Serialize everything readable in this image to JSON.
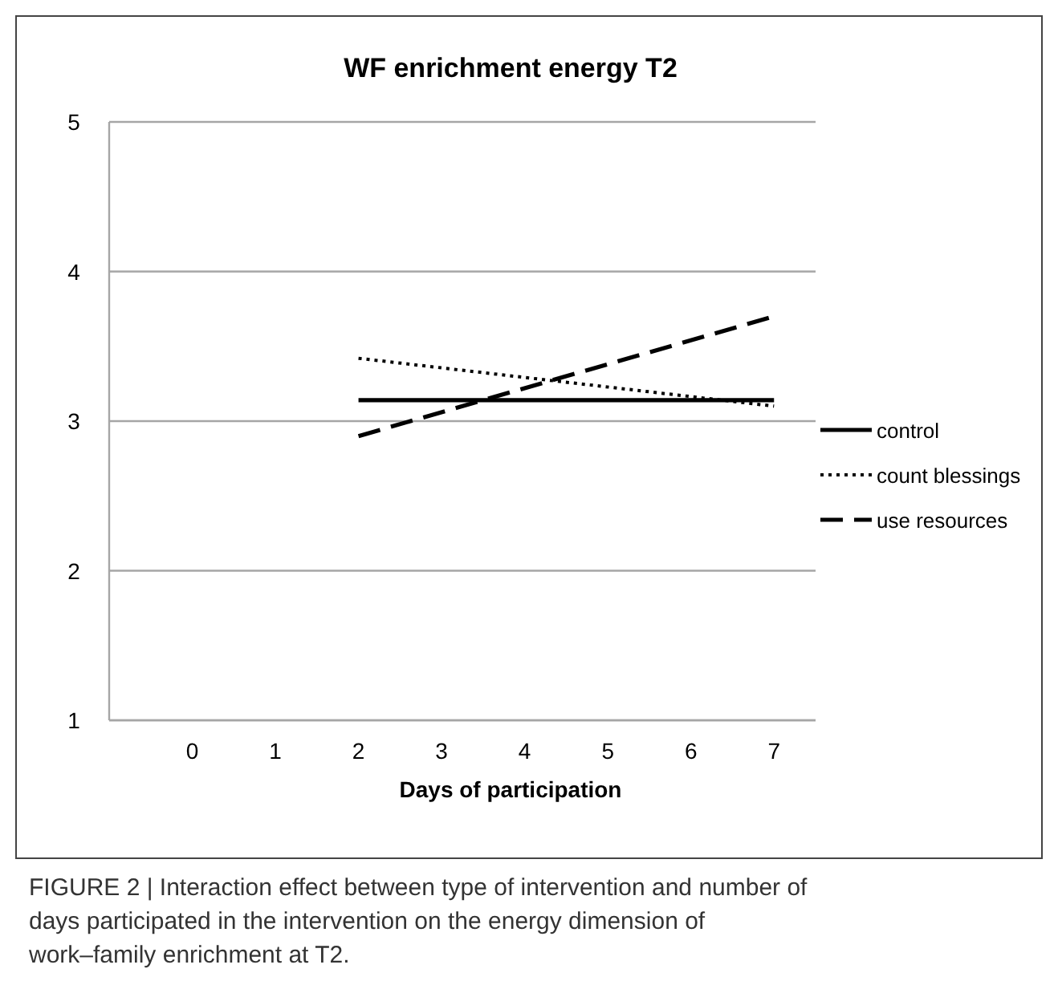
{
  "chart_data": {
    "type": "line",
    "title": "WF enrichment energy T2",
    "xlabel": "Days of participation",
    "x": [
      2,
      7
    ],
    "xlim": [
      -1,
      7.5
    ],
    "xticks": [
      0,
      1,
      2,
      3,
      4,
      5,
      6,
      7
    ],
    "ylim": [
      1,
      5
    ],
    "yticks": [
      1,
      2,
      3,
      4,
      5
    ],
    "grid": "y",
    "legend": "right",
    "series": [
      {
        "name": "control",
        "color": "#000000",
        "values": [
          3.14,
          3.14
        ],
        "line_style": "solid"
      },
      {
        "name": "count blessings",
        "color": "#000000",
        "values": [
          3.42,
          3.1
        ],
        "line_style": "dotted"
      },
      {
        "name": "use resources",
        "color": "#000000",
        "values": [
          2.9,
          3.7
        ],
        "line_style": "dashed"
      }
    ],
    "annotations": [
      "FIGURE 2 | Interaction effect between type of intervention and number of days participated in the intervention on the energy dimension of work–family enrichment at T2."
    ]
  }
}
